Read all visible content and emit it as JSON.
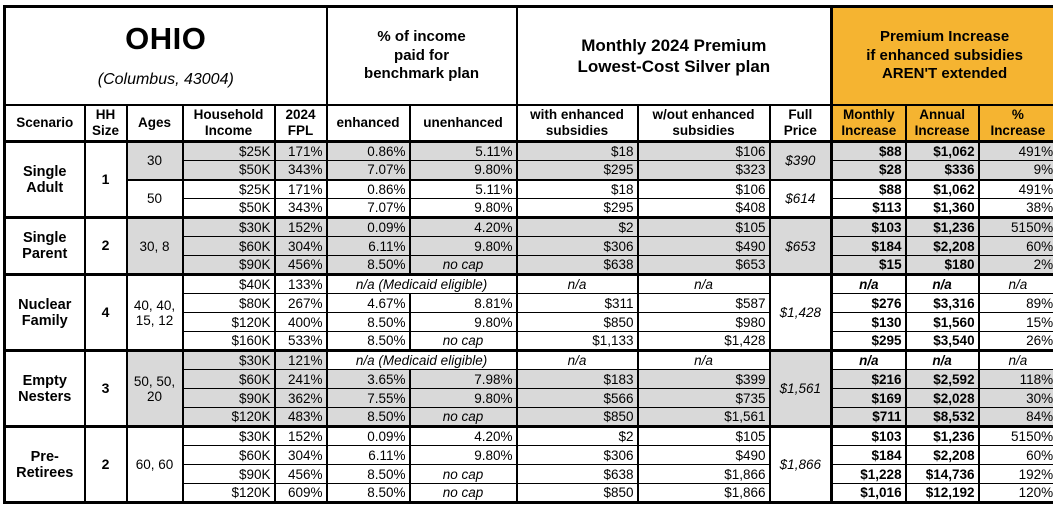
{
  "title": {
    "state": "OHIO",
    "location": "(Columbus, 43004)"
  },
  "headers": {
    "pct_income": "% of income\npaid for\nbenchmark plan",
    "monthly_premium": "Monthly 2024 Premium\nLowest-Cost Silver plan",
    "premium_increase": "Premium Increase\nif enhanced subsidies\nAREN'T extended",
    "columns": [
      "Scenario",
      "HH\nSize",
      "Ages",
      "Household\nIncome",
      "2024\nFPL",
      "enhanced",
      "unenhanced",
      "with enhanced\nsubsidies",
      "w/out enhanced\nsubsidies",
      "Full\nPrice",
      "Monthly\nIncrease",
      "Annual\nIncrease",
      "%\nIncrease"
    ]
  },
  "colors": {
    "accent_orange": "#F5B431",
    "row_shading": "#D9D9D9",
    "border": "#000000"
  },
  "sections": [
    {
      "scenario": "Single\nAdult",
      "hh_size": "1",
      "groups": [
        {
          "ages": "30",
          "shaded": true,
          "full_price": "$390",
          "rows": [
            {
              "income": "$25K",
              "fpl": "171%",
              "enhanced": "0.86%",
              "unenhanced": "5.11%",
              "with_sub": "$18",
              "wout_sub": "$106",
              "monthly": "$88",
              "annual": "$1,062",
              "pct": "491%"
            },
            {
              "income": "$50K",
              "fpl": "343%",
              "enhanced": "7.07%",
              "unenhanced": "9.80%",
              "with_sub": "$295",
              "wout_sub": "$323",
              "monthly": "$28",
              "annual": "$336",
              "pct": "9%"
            }
          ]
        },
        {
          "ages": "50",
          "shaded": false,
          "full_price": "$614",
          "rows": [
            {
              "income": "$25K",
              "fpl": "171%",
              "enhanced": "0.86%",
              "unenhanced": "5.11%",
              "with_sub": "$18",
              "wout_sub": "$106",
              "monthly": "$88",
              "annual": "$1,062",
              "pct": "491%"
            },
            {
              "income": "$50K",
              "fpl": "343%",
              "enhanced": "7.07%",
              "unenhanced": "9.80%",
              "with_sub": "$295",
              "wout_sub": "$408",
              "monthly": "$113",
              "annual": "$1,360",
              "pct": "38%"
            }
          ]
        }
      ]
    },
    {
      "scenario": "Single\nParent",
      "hh_size": "2",
      "groups": [
        {
          "ages": "30, 8",
          "shaded": true,
          "full_price": "$653",
          "rows": [
            {
              "income": "$30K",
              "fpl": "152%",
              "enhanced": "0.09%",
              "unenhanced": "4.20%",
              "with_sub": "$2",
              "wout_sub": "$105",
              "monthly": "$103",
              "annual": "$1,236",
              "pct": "5150%"
            },
            {
              "income": "$60K",
              "fpl": "304%",
              "enhanced": "6.11%",
              "unenhanced": "9.80%",
              "with_sub": "$306",
              "wout_sub": "$490",
              "monthly": "$184",
              "annual": "$2,208",
              "pct": "60%"
            },
            {
              "income": "$90K",
              "fpl": "456%",
              "enhanced": "8.50%",
              "unenhanced": "no cap",
              "with_sub": "$638",
              "wout_sub": "$653",
              "monthly": "$15",
              "annual": "$180",
              "pct": "2%"
            }
          ]
        }
      ]
    },
    {
      "scenario": "Nuclear\nFamily",
      "hh_size": "4",
      "groups": [
        {
          "ages": "40, 40,\n15, 12",
          "shaded": false,
          "full_price": "$1,428",
          "rows": [
            {
              "income": "$40K",
              "fpl": "133%",
              "enhanced": "n/a (Medicaid eligible)",
              "unenhanced": null,
              "with_sub": "n/a",
              "wout_sub": "n/a",
              "monthly": "n/a",
              "annual": "n/a",
              "pct": "n/a"
            },
            {
              "income": "$80K",
              "fpl": "267%",
              "enhanced": "4.67%",
              "unenhanced": "8.81%",
              "with_sub": "$311",
              "wout_sub": "$587",
              "monthly": "$276",
              "annual": "$3,316",
              "pct": "89%"
            },
            {
              "income": "$120K",
              "fpl": "400%",
              "enhanced": "8.50%",
              "unenhanced": "9.80%",
              "with_sub": "$850",
              "wout_sub": "$980",
              "monthly": "$130",
              "annual": "$1,560",
              "pct": "15%"
            },
            {
              "income": "$160K",
              "fpl": "533%",
              "enhanced": "8.50%",
              "unenhanced": "no cap",
              "with_sub": "$1,133",
              "wout_sub": "$1,428",
              "monthly": "$295",
              "annual": "$3,540",
              "pct": "26%"
            }
          ]
        }
      ]
    },
    {
      "scenario": "Empty\nNesters",
      "hh_size": "3",
      "groups": [
        {
          "ages": "50, 50,\n20",
          "shaded": true,
          "full_price": "$1,561",
          "rows": [
            {
              "income": "$30K",
              "fpl": "121%",
              "enhanced": "n/a (Medicaid eligible)",
              "unenhanced": null,
              "with_sub": "n/a",
              "wout_sub": "n/a",
              "monthly": "n/a",
              "annual": "n/a",
              "pct": "n/a"
            },
            {
              "income": "$60K",
              "fpl": "241%",
              "enhanced": "3.65%",
              "unenhanced": "7.98%",
              "with_sub": "$183",
              "wout_sub": "$399",
              "monthly": "$216",
              "annual": "$2,592",
              "pct": "118%"
            },
            {
              "income": "$90K",
              "fpl": "362%",
              "enhanced": "7.55%",
              "unenhanced": "9.80%",
              "with_sub": "$566",
              "wout_sub": "$735",
              "monthly": "$169",
              "annual": "$2,028",
              "pct": "30%"
            },
            {
              "income": "$120K",
              "fpl": "483%",
              "enhanced": "8.50%",
              "unenhanced": "no cap",
              "with_sub": "$850",
              "wout_sub": "$1,561",
              "monthly": "$711",
              "annual": "$8,532",
              "pct": "84%"
            }
          ]
        }
      ]
    },
    {
      "scenario": "Pre-\nRetirees",
      "hh_size": "2",
      "groups": [
        {
          "ages": "60, 60",
          "shaded": false,
          "full_price": "$1,866",
          "rows": [
            {
              "income": "$30K",
              "fpl": "152%",
              "enhanced": "0.09%",
              "unenhanced": "4.20%",
              "with_sub": "$2",
              "wout_sub": "$105",
              "monthly": "$103",
              "annual": "$1,236",
              "pct": "5150%"
            },
            {
              "income": "$60K",
              "fpl": "304%",
              "enhanced": "6.11%",
              "unenhanced": "9.80%",
              "with_sub": "$306",
              "wout_sub": "$490",
              "monthly": "$184",
              "annual": "$2,208",
              "pct": "60%"
            },
            {
              "income": "$90K",
              "fpl": "456%",
              "enhanced": "8.50%",
              "unenhanced": "no cap",
              "with_sub": "$638",
              "wout_sub": "$1,866",
              "monthly": "$1,228",
              "annual": "$14,736",
              "pct": "192%"
            },
            {
              "income": "$120K",
              "fpl": "609%",
              "enhanced": "8.50%",
              "unenhanced": "no cap",
              "with_sub": "$850",
              "wout_sub": "$1,866",
              "monthly": "$1,016",
              "annual": "$12,192",
              "pct": "120%"
            }
          ]
        }
      ]
    }
  ]
}
